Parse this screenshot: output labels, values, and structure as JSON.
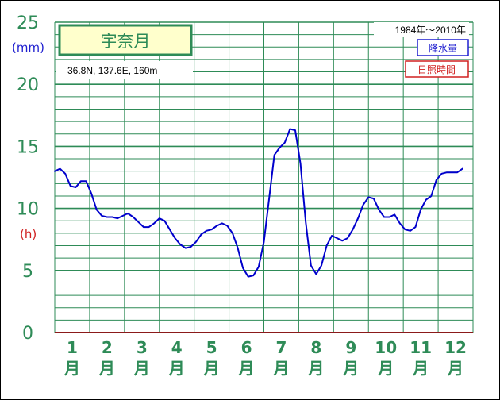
{
  "station": "宇奈月",
  "coords": "36.8N,  137.6E,  160m",
  "period": "1984年～2010年",
  "legend": {
    "precip": "降水量",
    "sunshine": "日照時間"
  },
  "units": {
    "precip": "(mm)",
    "sunshine": "(h)"
  },
  "colors": {
    "grid": "#2e8b57",
    "line": "#0000cc",
    "baseline": "#8b1a1a",
    "title_bg": "#ffffcc",
    "text_green": "#2e8b57"
  },
  "chart_data": {
    "type": "line",
    "ylim": [
      0,
      25
    ],
    "y_ticks": [
      "0",
      "5",
      "10",
      "15",
      "20",
      "25"
    ],
    "x_labels": [
      "1",
      "2",
      "3",
      "4",
      "5",
      "6",
      "7",
      "8",
      "9",
      "10",
      "11",
      "12"
    ],
    "x_suffix": "月",
    "series": [
      {
        "name": "日照時間",
        "x": [
          1.0,
          1.15,
          1.3,
          1.45,
          1.6,
          1.75,
          1.9,
          2.05,
          2.2,
          2.35,
          2.5,
          2.65,
          2.8,
          2.95,
          3.1,
          3.25,
          3.4,
          3.55,
          3.7,
          3.85,
          4.0,
          4.15,
          4.3,
          4.45,
          4.6,
          4.75,
          4.9,
          5.05,
          5.2,
          5.35,
          5.5,
          5.65,
          5.8,
          5.95,
          6.1,
          6.25,
          6.4,
          6.55,
          6.7,
          6.85,
          7.0,
          7.15,
          7.3,
          7.45,
          7.6,
          7.75,
          7.9,
          8.05,
          8.2,
          8.35,
          8.5,
          8.65,
          8.8,
          8.95,
          9.1,
          9.25,
          9.4,
          9.55,
          9.7,
          9.85,
          10.0,
          10.15,
          10.3,
          10.45,
          10.6,
          10.75,
          10.9,
          11.05,
          11.2,
          11.35,
          11.5,
          11.65,
          11.8,
          11.95,
          12.1,
          12.25,
          12.4,
          12.55,
          12.7
        ],
        "values": [
          13.0,
          13.2,
          12.8,
          11.8,
          11.7,
          12.2,
          12.2,
          11.2,
          9.9,
          9.4,
          9.3,
          9.3,
          9.2,
          9.4,
          9.6,
          9.3,
          8.9,
          8.5,
          8.5,
          8.8,
          9.2,
          9.0,
          8.3,
          7.6,
          7.1,
          6.8,
          6.9,
          7.3,
          7.9,
          8.2,
          8.3,
          8.6,
          8.8,
          8.6,
          8.0,
          6.8,
          5.2,
          4.5,
          4.6,
          5.3,
          7.3,
          10.8,
          14.3,
          14.9,
          15.3,
          16.4,
          16.3,
          13.6,
          8.9,
          5.4,
          4.7,
          5.4,
          7.0,
          7.8,
          7.6,
          7.4,
          7.6,
          8.3,
          9.2,
          10.3,
          10.9,
          10.8,
          9.9,
          9.3,
          9.3,
          9.5,
          8.8,
          8.3,
          8.2,
          8.5,
          9.9,
          10.7,
          11.0,
          12.3,
          12.8,
          12.9,
          12.9,
          12.9,
          13.2
        ]
      }
    ],
    "grid": true
  }
}
